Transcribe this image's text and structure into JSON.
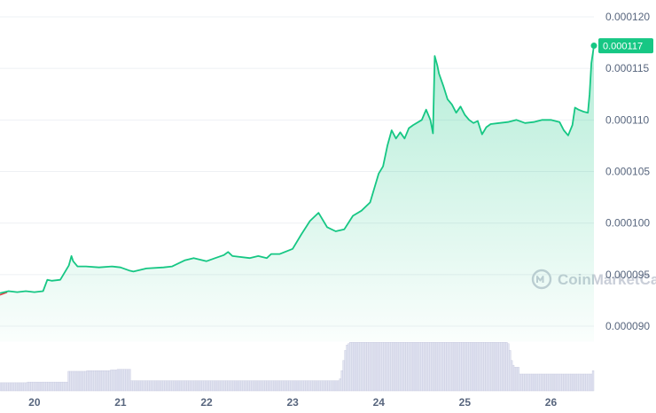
{
  "watermark": {
    "text": "CoinMarketCap"
  },
  "colors": {
    "line": "#16c784",
    "line_down": "#ea3943",
    "area_top": "#16c784",
    "volume_fill": "#e3e5f2",
    "volume_stroke": "#c3c6dc",
    "grid": "#eef0f4",
    "axis_text": "#58667e",
    "price_tag": "#16c784"
  },
  "chart_data": {
    "type": "line",
    "title": "",
    "xlabel": "",
    "ylabel": "",
    "x_tick_labels": [
      "20",
      "21",
      "22",
      "23",
      "24",
      "25",
      "26"
    ],
    "y_tick_labels": [
      "0.000120",
      "0.000115",
      "0.000110",
      "0.000105",
      "0.000100",
      "0.000095",
      "0.000090"
    ],
    "ylim": [
      8.85e-05,
      0.0001209
    ],
    "xlim": [
      19.6,
      26.5
    ],
    "current_price_label": "0.000117",
    "grid": true,
    "series": [
      {
        "values_x": [
          19.6,
          19.7,
          19.8,
          19.9,
          20.0,
          20.1,
          20.15,
          20.2,
          20.3,
          20.4,
          20.43,
          20.45,
          20.5,
          20.6,
          20.75,
          20.9,
          21.0,
          21.1,
          21.15,
          21.3,
          21.5,
          21.6,
          21.75,
          21.85,
          22.0,
          22.1,
          22.2,
          22.25,
          22.3,
          22.5,
          22.6,
          22.7,
          22.75,
          22.85,
          23.0,
          23.1,
          23.2,
          23.3,
          23.4,
          23.5,
          23.6,
          23.7,
          23.8,
          23.9,
          24.0,
          24.05,
          24.1,
          24.15,
          24.2,
          24.25,
          24.3,
          24.35,
          24.4,
          24.5,
          24.55,
          24.6,
          24.63,
          24.65,
          24.68,
          24.7,
          24.75,
          24.8,
          24.85,
          24.9,
          24.95,
          25.0,
          25.05,
          25.1,
          25.15,
          25.2,
          25.25,
          25.3,
          25.4,
          25.5,
          25.6,
          25.7,
          25.8,
          25.9,
          26.0,
          26.1,
          26.15,
          26.2,
          26.25,
          26.28,
          26.32,
          26.38,
          26.43,
          26.45,
          26.47,
          26.5
        ],
        "values": [
          9.32e-05,
          9.34e-05,
          9.33e-05,
          9.34e-05,
          9.33e-05,
          9.34e-05,
          9.45e-05,
          9.44e-05,
          9.45e-05,
          9.59e-05,
          9.68e-05,
          9.63e-05,
          9.58e-05,
          9.58e-05,
          9.57e-05,
          9.58e-05,
          9.57e-05,
          9.54e-05,
          9.53e-05,
          9.56e-05,
          9.57e-05,
          9.58e-05,
          9.64e-05,
          9.66e-05,
          9.63e-05,
          9.66e-05,
          9.69e-05,
          9.72e-05,
          9.68e-05,
          9.66e-05,
          9.68e-05,
          9.66e-05,
          9.7e-05,
          9.7e-05,
          9.75e-05,
          9.89e-05,
          0.0001002,
          0.000101,
          9.96e-05,
          9.92e-05,
          9.94e-05,
          0.0001007,
          0.0001012,
          0.000102,
          0.0001048,
          0.0001055,
          0.0001075,
          0.000109,
          0.0001082,
          0.0001088,
          0.0001082,
          0.0001092,
          0.0001095,
          0.00011,
          0.000111,
          0.00011,
          0.0001087,
          0.0001162,
          0.0001153,
          0.0001145,
          0.0001133,
          0.000112,
          0.0001115,
          0.0001107,
          0.0001113,
          0.0001105,
          0.00011,
          0.0001097,
          0.0001099,
          0.0001086,
          0.0001093,
          0.0001096,
          0.0001097,
          0.0001098,
          0.00011,
          0.0001097,
          0.0001098,
          0.00011,
          0.00011,
          0.0001098,
          0.000109,
          0.0001085,
          0.0001095,
          0.0001112,
          0.000111,
          0.0001108,
          0.0001107,
          0.0001125,
          0.0001155,
          0.0001172
        ]
      }
    ],
    "volume": {
      "x_start": 19.6,
      "x_end": 26.5,
      "levels": [
        0.12,
        0.12,
        0.12,
        0.12,
        0.12,
        0.12,
        0.12,
        0.12,
        0.12,
        0.12,
        0.12,
        0.12,
        0.12,
        0.12,
        0.12,
        0.12,
        0.13,
        0.13,
        0.13,
        0.13,
        0.13,
        0.13,
        0.13,
        0.13,
        0.13,
        0.13,
        0.13,
        0.13,
        0.13,
        0.13,
        0.13,
        0.13,
        0.13,
        0.13,
        0.13,
        0.13,
        0.13,
        0.13,
        0.13,
        0.13,
        0.29,
        0.29,
        0.29,
        0.29,
        0.29,
        0.29,
        0.29,
        0.29,
        0.29,
        0.29,
        0.29,
        0.3,
        0.3,
        0.3,
        0.3,
        0.3,
        0.3,
        0.3,
        0.3,
        0.3,
        0.3,
        0.3,
        0.3,
        0.3,
        0.3,
        0.31,
        0.31,
        0.31,
        0.31,
        0.32,
        0.32,
        0.32,
        0.32,
        0.32,
        0.32,
        0.32,
        0.32,
        0.15,
        0.15,
        0.15,
        0.15,
        0.15,
        0.15,
        0.15,
        0.15,
        0.15,
        0.15,
        0.15,
        0.15,
        0.15,
        0.15,
        0.15,
        0.15,
        0.15,
        0.15,
        0.15,
        0.15,
        0.15,
        0.15,
        0.15,
        0.15,
        0.15,
        0.15,
        0.15,
        0.15,
        0.15,
        0.15,
        0.15,
        0.15,
        0.15,
        0.15,
        0.15,
        0.15,
        0.15,
        0.15,
        0.15,
        0.15,
        0.15,
        0.15,
        0.15,
        0.15,
        0.15,
        0.15,
        0.15,
        0.15,
        0.15,
        0.15,
        0.15,
        0.15,
        0.15,
        0.15,
        0.15,
        0.15,
        0.15,
        0.15,
        0.15,
        0.15,
        0.15,
        0.15,
        0.15,
        0.15,
        0.15,
        0.15,
        0.15,
        0.15,
        0.15,
        0.15,
        0.15,
        0.15,
        0.15,
        0.15,
        0.15,
        0.15,
        0.15,
        0.15,
        0.15,
        0.15,
        0.15,
        0.15,
        0.15,
        0.15,
        0.15,
        0.15,
        0.15,
        0.15,
        0.15,
        0.15,
        0.15,
        0.15,
        0.15,
        0.15,
        0.15,
        0.15,
        0.15,
        0.15,
        0.15,
        0.15,
        0.15,
        0.15,
        0.15,
        0.15,
        0.15,
        0.15,
        0.15,
        0.15,
        0.15,
        0.15,
        0.15,
        0.15,
        0.15,
        0.15,
        0.15,
        0.15,
        0.15,
        0.15,
        0.15,
        0.15,
        0.15,
        0.15,
        0.15,
        0.18,
        0.3,
        0.45,
        0.6,
        0.68,
        0.7,
        0.72,
        0.72,
        0.72,
        0.72,
        0.72,
        0.72,
        0.72,
        0.72,
        0.72,
        0.72,
        0.72,
        0.72,
        0.72,
        0.72,
        0.72,
        0.72,
        0.72,
        0.72,
        0.72,
        0.72,
        0.72,
        0.72,
        0.72,
        0.72,
        0.72,
        0.72,
        0.72,
        0.72,
        0.72,
        0.72,
        0.72,
        0.72,
        0.72,
        0.72,
        0.72,
        0.72,
        0.72,
        0.72,
        0.72,
        0.72,
        0.72,
        0.72,
        0.72,
        0.72,
        0.72,
        0.72,
        0.72,
        0.72,
        0.72,
        0.72,
        0.72,
        0.72,
        0.72,
        0.72,
        0.72,
        0.72,
        0.72,
        0.72,
        0.72,
        0.72,
        0.72,
        0.72,
        0.72,
        0.72,
        0.72,
        0.72,
        0.72,
        0.72,
        0.72,
        0.72,
        0.72,
        0.72,
        0.72,
        0.72,
        0.72,
        0.72,
        0.72,
        0.72,
        0.72,
        0.72,
        0.72,
        0.72,
        0.72,
        0.72,
        0.72,
        0.72,
        0.72,
        0.72,
        0.72,
        0.72,
        0.72,
        0.72,
        0.72,
        0.7,
        0.6,
        0.45,
        0.38,
        0.35,
        0.35,
        0.35,
        0.25,
        0.25,
        0.25,
        0.25,
        0.25,
        0.25,
        0.25,
        0.25,
        0.25,
        0.25,
        0.25,
        0.25,
        0.25,
        0.25,
        0.25,
        0.25,
        0.25,
        0.25,
        0.25,
        0.25,
        0.25,
        0.25,
        0.25,
        0.25,
        0.25,
        0.25,
        0.25,
        0.25,
        0.25,
        0.25,
        0.25,
        0.25,
        0.25,
        0.25,
        0.25,
        0.25,
        0.25,
        0.25,
        0.25,
        0.25,
        0.25,
        0.25,
        0.25,
        0.3
      ]
    }
  }
}
